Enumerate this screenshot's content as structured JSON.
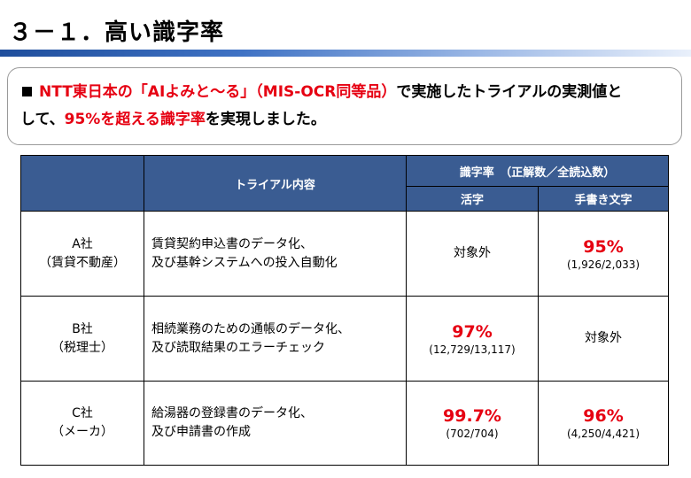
{
  "page_title": "３－１．高い識字率",
  "callout": {
    "p1": "NTT東日本の「AIよみと～る」（MIS-OCR同等品）",
    "p2": "で実施したトライアルの実測値と",
    "p3": "して、",
    "p4": "95%を超える識字率",
    "p5": "を実現しました。"
  },
  "table": {
    "header_content": "トライアル内容",
    "header_rate": "識字率　（正解数／全読込数）",
    "header_print": "活字",
    "header_handwritten": "手書き文字",
    "rows": [
      {
        "company": "A社",
        "industry": "（賃貸不動産）",
        "content_line1": "賃貸契約申込書のデータ化、",
        "content_line2": "及び基幹システムへの投入自動化",
        "print_text": "対象外",
        "hand_pct": "95%",
        "hand_ratio": "(1,926/2,033)"
      },
      {
        "company": "B社",
        "industry": "（税理士）",
        "content_line1": "相続業務のための通帳のデータ化、",
        "content_line2": "及び読取結果のエラーチェック",
        "print_pct": "97%",
        "print_ratio": "(12,729/13,117)",
        "hand_text": "対象外"
      },
      {
        "company": "C社",
        "industry": "（メーカ）",
        "content_line1": "給湯器の登録書のデータ化、",
        "content_line2": "及び申請書の作成",
        "print_pct": "99.7%",
        "print_ratio": "(702/704)",
        "hand_pct": "96%",
        "hand_ratio": "(4,250/4,421)"
      }
    ]
  }
}
